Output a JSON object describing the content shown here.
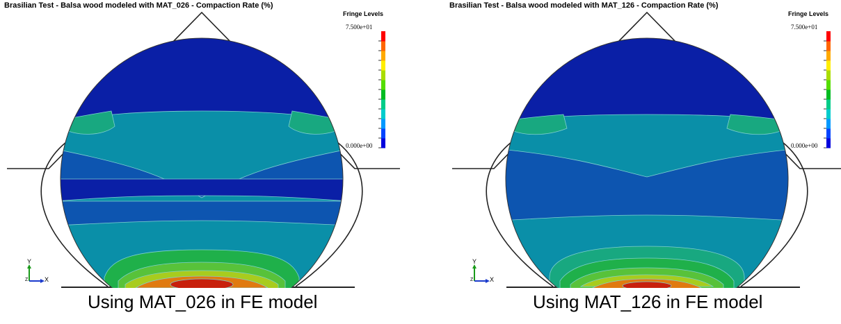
{
  "panels": [
    {
      "title": "Brasilian Test - Balsa wood modeled with MAT_026 - Compaction Rate (%)",
      "fringe_title": "Fringe Levels",
      "fringe_max": "7.500e+01",
      "fringe_min": "0.000e+00",
      "axis_y": "Y",
      "axis_x": "X",
      "axis_z": "Z",
      "caption": "Using MAT_026 in FE model"
    },
    {
      "title": "Brasilian Test - Balsa wood modeled with MAT_126 - Compaction Rate (%)",
      "fringe_title": "Fringe Levels",
      "fringe_max": "7.500e+01",
      "fringe_min": "0.000e+00",
      "axis_y": "Y",
      "axis_x": "X",
      "axis_z": "Z",
      "caption": "Using MAT_126 in FE model"
    }
  ],
  "fringe_colors": [
    "#0000dd",
    "#0044ff",
    "#0099ff",
    "#00cccc",
    "#00cc88",
    "#00bb22",
    "#55dd00",
    "#aadd00",
    "#ffee00",
    "#ffaa00",
    "#ff6600",
    "#ff0000"
  ],
  "contour_colors": {
    "dark_blue": "#0a1fa6",
    "medium_blue": "#0d55b0",
    "teal": "#0a8fa8",
    "teal_green": "#18a880",
    "green": "#1fb04a",
    "light_green": "#58c23a",
    "yellow_green": "#a8cc1e",
    "orange": "#e07a10",
    "red": "#c8200c"
  }
}
